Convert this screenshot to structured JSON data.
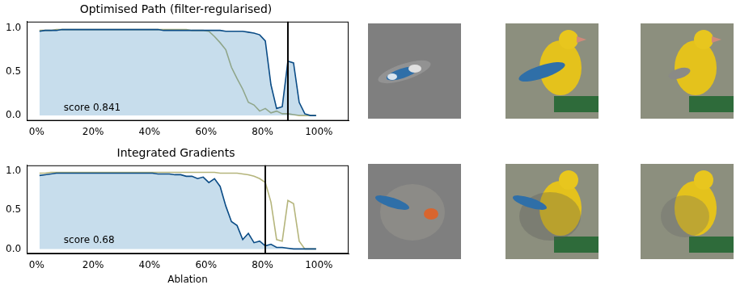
{
  "chart_data": [
    {
      "type": "line",
      "title": "Optimised Path (filter-regularised)",
      "x": [
        1,
        3,
        5,
        7,
        9,
        11,
        13,
        15,
        17,
        19,
        21,
        23,
        25,
        27,
        29,
        31,
        33,
        35,
        37,
        39,
        41,
        43,
        45,
        47,
        49,
        51,
        53,
        55,
        57,
        59,
        61,
        63,
        65,
        67,
        69,
        71,
        73,
        75,
        77,
        79,
        81,
        83,
        85,
        87,
        89,
        91,
        93,
        95,
        97,
        99
      ],
      "series": [
        {
          "type": "area",
          "color": "#0b4c86",
          "values": [
            0.96,
            0.97,
            0.97,
            0.97,
            0.98,
            0.98,
            0.98,
            0.98,
            0.98,
            0.98,
            0.98,
            0.98,
            0.98,
            0.98,
            0.98,
            0.98,
            0.98,
            0.98,
            0.98,
            0.98,
            0.98,
            0.98,
            0.97,
            0.97,
            0.97,
            0.97,
            0.97,
            0.97,
            0.97,
            0.97,
            0.97,
            0.97,
            0.97,
            0.96,
            0.96,
            0.96,
            0.96,
            0.95,
            0.94,
            0.92,
            0.85,
            0.35,
            0.08,
            0.1,
            0.62,
            0.6,
            0.15,
            0.02,
            0.0,
            0.0
          ]
        },
        {
          "type": "line",
          "color": "#b5b57c",
          "values": [
            0.97,
            0.97,
            0.97,
            0.98,
            0.98,
            0.98,
            0.98,
            0.98,
            0.98,
            0.98,
            0.98,
            0.98,
            0.98,
            0.98,
            0.98,
            0.98,
            0.98,
            0.98,
            0.98,
            0.98,
            0.98,
            0.98,
            0.98,
            0.98,
            0.98,
            0.98,
            0.98,
            0.97,
            0.97,
            0.97,
            0.96,
            0.9,
            0.83,
            0.75,
            0.55,
            0.42,
            0.3,
            0.15,
            0.12,
            0.05,
            0.08,
            0.03,
            0.05,
            0.02,
            0.02,
            0.01,
            0.0,
            0.0,
            0.0,
            0.0
          ]
        }
      ],
      "xlim": [
        -3.5,
        110.5
      ],
      "ylim": [
        -0.06,
        1.07
      ],
      "xticks": [
        {
          "value": 0,
          "label": "0%"
        },
        {
          "value": 20,
          "label": "20%"
        },
        {
          "value": 40,
          "label": "40%"
        },
        {
          "value": 60,
          "label": "60%"
        },
        {
          "value": 80,
          "label": "80%"
        },
        {
          "value": 100,
          "label": "100%"
        }
      ],
      "yticks": [
        {
          "value": 0,
          "label": "0.0"
        },
        {
          "value": 0.5,
          "label": "0.5"
        },
        {
          "value": 1,
          "label": "1.0"
        }
      ],
      "grid": false,
      "vline": 89,
      "annotation": "score 0.841"
    },
    {
      "type": "line",
      "title": "Integrated Gradients",
      "x_label": "Ablation",
      "x": [
        1,
        3,
        5,
        7,
        9,
        11,
        13,
        15,
        17,
        19,
        21,
        23,
        25,
        27,
        29,
        31,
        33,
        35,
        37,
        39,
        41,
        43,
        45,
        47,
        49,
        51,
        53,
        55,
        57,
        59,
        61,
        63,
        65,
        67,
        69,
        71,
        73,
        75,
        77,
        79,
        81,
        83,
        85,
        87,
        89,
        91,
        93,
        95,
        97,
        99
      ],
      "series": [
        {
          "type": "area",
          "color": "#0b4c86",
          "values": [
            0.94,
            0.95,
            0.96,
            0.97,
            0.97,
            0.97,
            0.97,
            0.97,
            0.97,
            0.97,
            0.97,
            0.97,
            0.97,
            0.97,
            0.97,
            0.97,
            0.97,
            0.97,
            0.97,
            0.97,
            0.97,
            0.96,
            0.96,
            0.96,
            0.95,
            0.95,
            0.93,
            0.93,
            0.9,
            0.92,
            0.85,
            0.9,
            0.8,
            0.55,
            0.35,
            0.3,
            0.12,
            0.2,
            0.08,
            0.1,
            0.04,
            0.06,
            0.02,
            0.02,
            0.01,
            0.0,
            0.0,
            0.0,
            0.0,
            0.0
          ]
        },
        {
          "type": "line",
          "color": "#b5b57c",
          "values": [
            0.97,
            0.97,
            0.98,
            0.98,
            0.98,
            0.98,
            0.98,
            0.98,
            0.98,
            0.98,
            0.98,
            0.98,
            0.98,
            0.98,
            0.98,
            0.98,
            0.98,
            0.98,
            0.98,
            0.98,
            0.98,
            0.98,
            0.98,
            0.98,
            0.98,
            0.98,
            0.98,
            0.98,
            0.98,
            0.98,
            0.98,
            0.98,
            0.97,
            0.97,
            0.97,
            0.97,
            0.96,
            0.95,
            0.93,
            0.9,
            0.85,
            0.6,
            0.12,
            0.1,
            0.62,
            0.58,
            0.1,
            0.0,
            0.0,
            0.0
          ]
        }
      ],
      "xlim": [
        -3.5,
        110.5
      ],
      "ylim": [
        -0.06,
        1.07
      ],
      "xticks": [
        {
          "value": 0,
          "label": "0%"
        },
        {
          "value": 20,
          "label": "20%"
        },
        {
          "value": 40,
          "label": "40%"
        },
        {
          "value": 60,
          "label": "60%"
        },
        {
          "value": 80,
          "label": "80%"
        },
        {
          "value": 100,
          "label": "100%"
        }
      ],
      "yticks": [
        {
          "value": 0,
          "label": "0.0"
        },
        {
          "value": 0.5,
          "label": "0.5"
        },
        {
          "value": 1,
          "label": "1.0"
        }
      ],
      "grid": false,
      "vline": 81,
      "annotation": "score 0.68"
    }
  ]
}
